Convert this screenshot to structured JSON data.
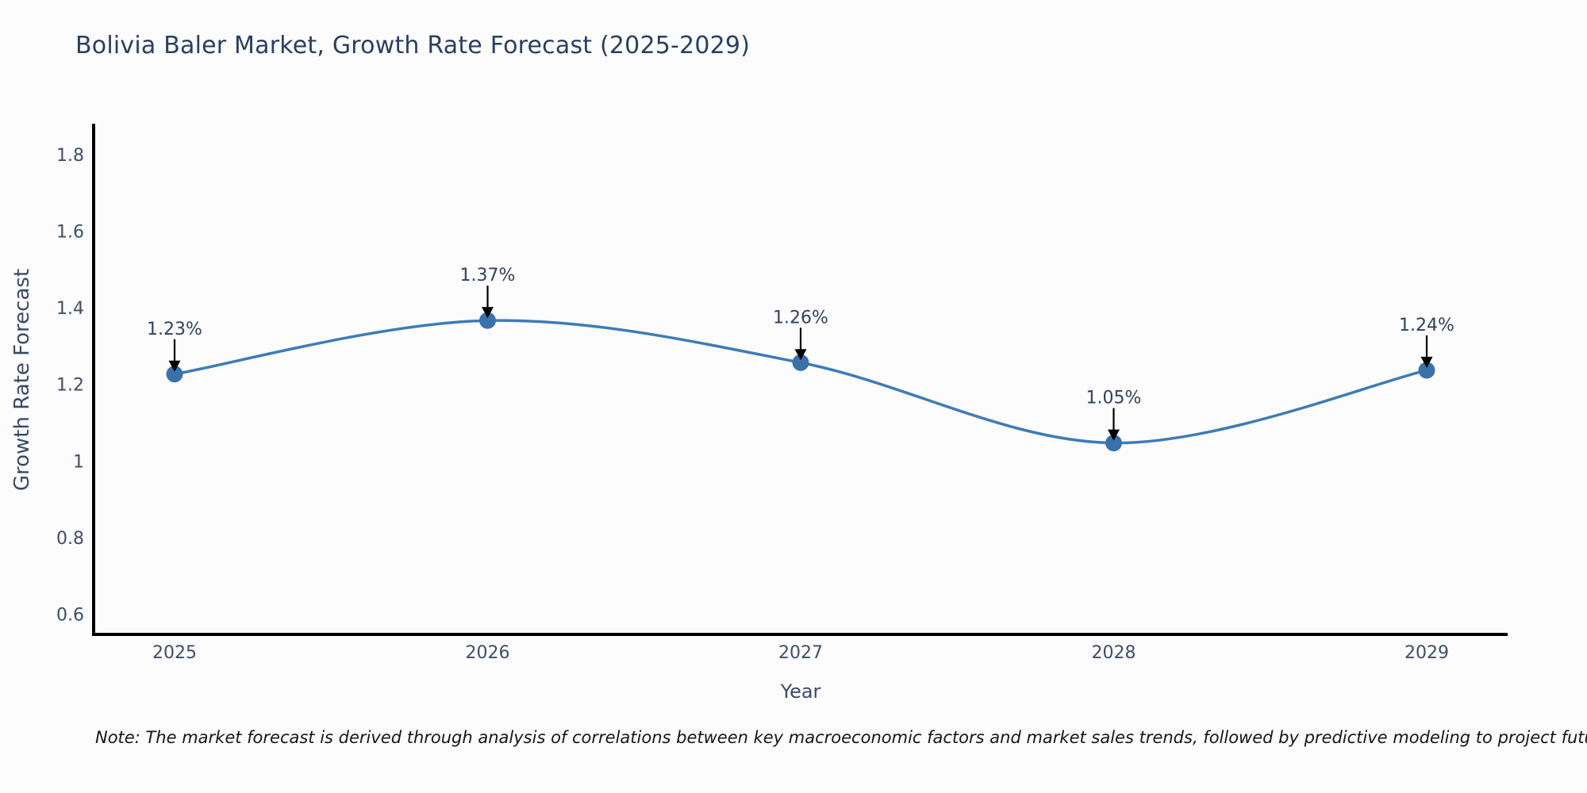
{
  "page": {
    "note": "Note: The market forecast is derived through analysis of correlations between key macroeconomic factors and market sales trends, followed by predictive modeling to project future sales"
  },
  "chart_data": {
    "type": "line",
    "title": "Bolivia Baler Market, Growth Rate Forecast (2025-2029)",
    "x": [
      2025,
      2026,
      2027,
      2028,
      2029
    ],
    "values": [
      1.23,
      1.37,
      1.26,
      1.05,
      1.24
    ],
    "point_labels": [
      "1.23%",
      "1.37%",
      "1.26%",
      "1.05%",
      "1.24%"
    ],
    "xlabel": "Year",
    "ylabel": "Growth Rate Forecast",
    "yticks": [
      0.6,
      0.8,
      1,
      1.2,
      1.4,
      1.6,
      1.8
    ],
    "ytick_labels": [
      "0.6",
      "0.8",
      "1",
      "1.2",
      "1.4",
      "1.6",
      "1.8"
    ],
    "ylim": [
      0.55,
      1.88
    ],
    "line_shape": "spline",
    "markers": true,
    "grid": false,
    "legend": "none",
    "annotation_style": "label-above-with-down-arrow",
    "colors": {
      "line": "#3e7bb6",
      "marker": "#3a71a9",
      "axis": "#000000",
      "arrow": "#000000",
      "title_text": "#2c3e5d",
      "tick_text": "#414d66",
      "annotation_text": "#33405c",
      "note_text": "#161616",
      "background": "#fcfcfc"
    }
  }
}
